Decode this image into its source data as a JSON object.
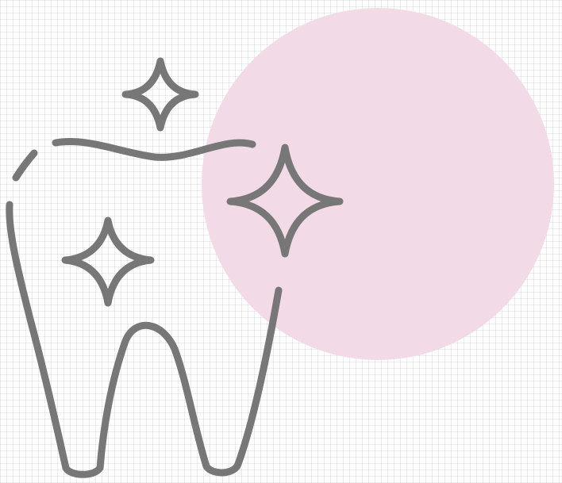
{
  "illustration": {
    "subject": "clean-tooth-icon",
    "colors": {
      "background": "#ffffff",
      "grid": "#e6e6e6",
      "circle": "#f2dbe6",
      "stroke": "#777777"
    },
    "sparkles": [
      "small-top",
      "large-right",
      "small-inner"
    ]
  }
}
